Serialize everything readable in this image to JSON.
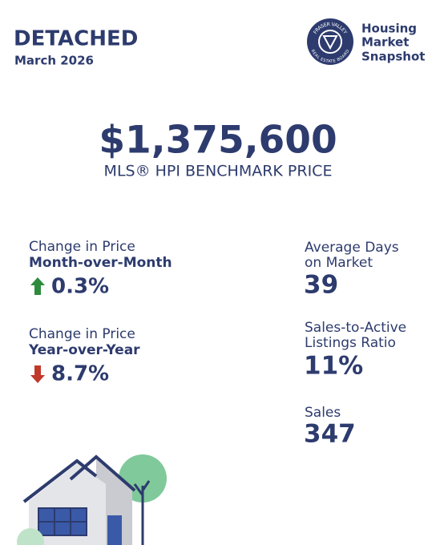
{
  "header": {
    "title": "DETACHED",
    "subtitle": "March 2026"
  },
  "logo": {
    "ring_top": "FRASER VALLEY",
    "ring_bottom": "REAL ESTATE BOARD",
    "lines": [
      "Housing",
      "Market",
      "Snapshot"
    ]
  },
  "benchmark": {
    "value": "$1,375,600",
    "label": "MLS® HPI BENCHMARK PRICE"
  },
  "left_stats": [
    {
      "label": "Change in Price",
      "period": "Month-over-Month",
      "value": "0.3%"
    },
    {
      "label": "Change in Price",
      "period": "Year-over-Year",
      "value": "8.7%"
    }
  ],
  "right_stats": [
    {
      "label_lines": [
        "Average Days",
        "on Market"
      ],
      "value": "39"
    },
    {
      "label_lines": [
        "Sales-to-Active",
        "Listings Ratio"
      ],
      "value": "11%"
    },
    {
      "label_lines": [
        "Sales"
      ],
      "value": "347"
    }
  ]
}
